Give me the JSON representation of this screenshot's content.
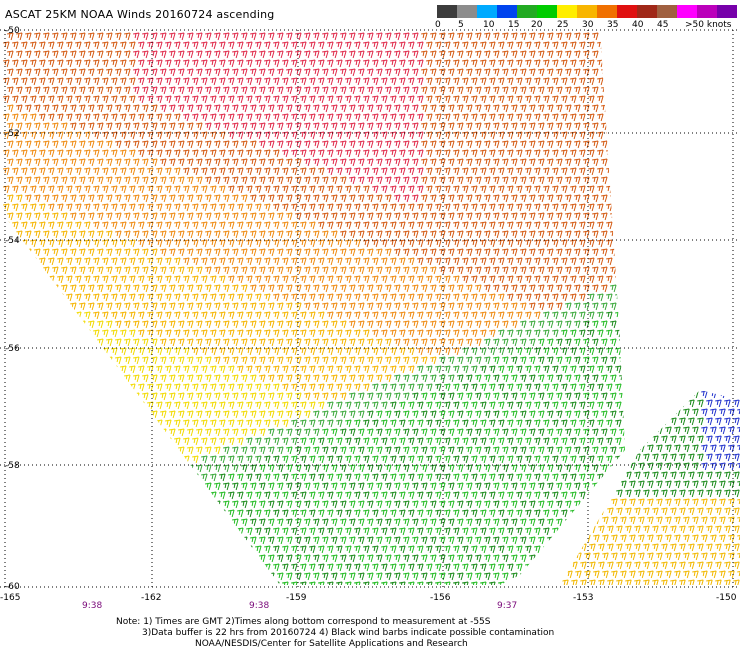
{
  "header": {
    "title": "ASCAT 25KM NOAA Winds 20160724 ascending"
  },
  "legend": {
    "colors": [
      "#3c3c3c",
      "#8c8c8c",
      "#00aaff",
      "#0044ee",
      "#22aa22",
      "#00cc00",
      "#ffee00",
      "#f8b500",
      "#f07000",
      "#e01010",
      "#a02818",
      "#a06040",
      "#ff00ff",
      "#bb00bb",
      "#7700aa"
    ],
    "labels": [
      "0",
      "5",
      "10",
      "15",
      "20",
      "25",
      "30",
      "35",
      "40",
      "45",
      ">50 knots"
    ],
    "unit": "knots"
  },
  "axes": {
    "lat_labels": [
      "-50",
      "-52",
      "-54",
      "-56",
      "-58",
      "-60"
    ],
    "lon_labels": [
      "-165",
      "-162",
      "-159",
      "-156",
      "-153",
      "-150"
    ]
  },
  "times": [
    "9:38",
    "9:38",
    "9:37"
  ],
  "notes": {
    "line1": "Note: 1) Times are GMT 2)Times along bottom correspond to measurement at -55S",
    "line2": "3)Data buffer is 22 hrs from 20160724 4) Black wind barbs indicate possible contamination",
    "line3": "NOAA/NESDIS/Center for Satellite Applications and Research"
  }
}
